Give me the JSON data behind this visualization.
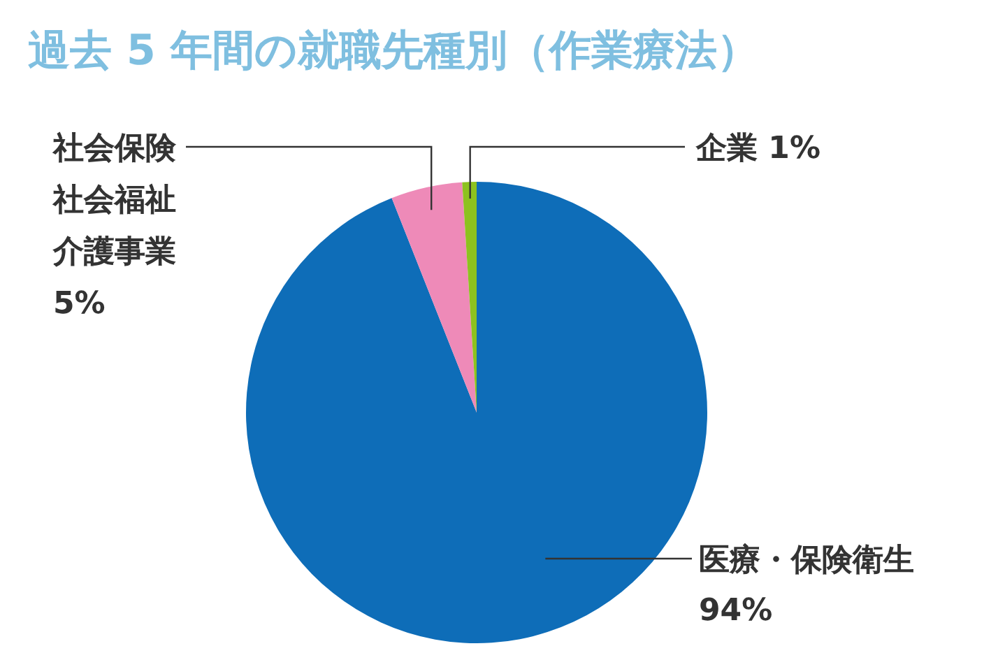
{
  "chart_data": {
    "type": "pie",
    "title": "過去 5 年間の就職先種別（作業療法）",
    "categories": [
      "医療・保険衛生",
      "社会保険社会福祉介護事業",
      "企業"
    ],
    "values": [
      94,
      5,
      1
    ],
    "colors": [
      "#0e6db8",
      "#ee8ab8",
      "#8dc21f"
    ],
    "value_labels": [
      "94%",
      "5%",
      "1%"
    ],
    "legend": false
  }
}
